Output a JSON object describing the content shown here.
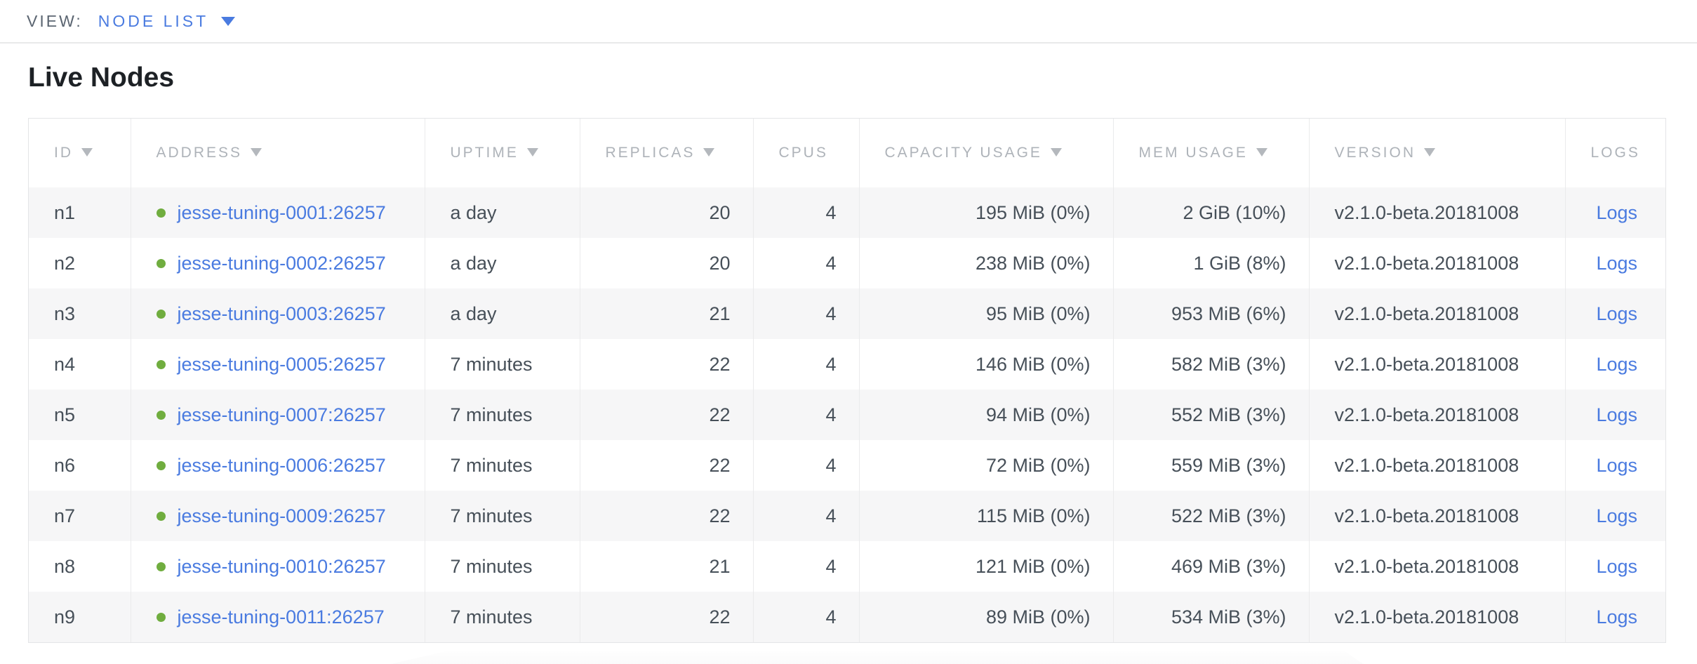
{
  "view_bar": {
    "label": "VIEW:",
    "selected": "NODE LIST"
  },
  "page": {
    "title": "Live Nodes"
  },
  "table": {
    "columns": [
      {
        "key": "id",
        "label": "ID",
        "sortable": true,
        "align": "left"
      },
      {
        "key": "address",
        "label": "ADDRESS",
        "sortable": true,
        "align": "left"
      },
      {
        "key": "uptime",
        "label": "UPTIME",
        "sortable": true,
        "align": "left"
      },
      {
        "key": "replicas",
        "label": "REPLICAS",
        "sortable": true,
        "align": "right"
      },
      {
        "key": "cpus",
        "label": "CPUS",
        "sortable": false,
        "align": "right"
      },
      {
        "key": "capacity",
        "label": "CAPACITY USAGE",
        "sortable": true,
        "align": "right"
      },
      {
        "key": "mem",
        "label": "MEM USAGE",
        "sortable": true,
        "align": "right"
      },
      {
        "key": "version",
        "label": "VERSION",
        "sortable": true,
        "align": "left"
      },
      {
        "key": "logs",
        "label": "LOGS",
        "sortable": false,
        "align": "center"
      }
    ],
    "rows": [
      {
        "id": "n1",
        "address": "jesse-tuning-0001:26257",
        "status": "live",
        "uptime": "a day",
        "replicas": "20",
        "cpus": "4",
        "capacity": "195 MiB (0%)",
        "mem": "2 GiB (10%)",
        "version": "v2.1.0-beta.20181008",
        "logs": "Logs"
      },
      {
        "id": "n2",
        "address": "jesse-tuning-0002:26257",
        "status": "live",
        "uptime": "a day",
        "replicas": "20",
        "cpus": "4",
        "capacity": "238 MiB (0%)",
        "mem": "1 GiB (8%)",
        "version": "v2.1.0-beta.20181008",
        "logs": "Logs"
      },
      {
        "id": "n3",
        "address": "jesse-tuning-0003:26257",
        "status": "live",
        "uptime": "a day",
        "replicas": "21",
        "cpus": "4",
        "capacity": "95 MiB (0%)",
        "mem": "953 MiB (6%)",
        "version": "v2.1.0-beta.20181008",
        "logs": "Logs"
      },
      {
        "id": "n4",
        "address": "jesse-tuning-0005:26257",
        "status": "live",
        "uptime": "7 minutes",
        "replicas": "22",
        "cpus": "4",
        "capacity": "146 MiB (0%)",
        "mem": "582 MiB (3%)",
        "version": "v2.1.0-beta.20181008",
        "logs": "Logs"
      },
      {
        "id": "n5",
        "address": "jesse-tuning-0007:26257",
        "status": "live",
        "uptime": "7 minutes",
        "replicas": "22",
        "cpus": "4",
        "capacity": "94 MiB (0%)",
        "mem": "552 MiB (3%)",
        "version": "v2.1.0-beta.20181008",
        "logs": "Logs"
      },
      {
        "id": "n6",
        "address": "jesse-tuning-0006:26257",
        "status": "live",
        "uptime": "7 minutes",
        "replicas": "22",
        "cpus": "4",
        "capacity": "72 MiB (0%)",
        "mem": "559 MiB (3%)",
        "version": "v2.1.0-beta.20181008",
        "logs": "Logs"
      },
      {
        "id": "n7",
        "address": "jesse-tuning-0009:26257",
        "status": "live",
        "uptime": "7 minutes",
        "replicas": "22",
        "cpus": "4",
        "capacity": "115 MiB (0%)",
        "mem": "522 MiB (3%)",
        "version": "v2.1.0-beta.20181008",
        "logs": "Logs"
      },
      {
        "id": "n8",
        "address": "jesse-tuning-0010:26257",
        "status": "live",
        "uptime": "7 minutes",
        "replicas": "21",
        "cpus": "4",
        "capacity": "121 MiB (0%)",
        "mem": "469 MiB (3%)",
        "version": "v2.1.0-beta.20181008",
        "logs": "Logs"
      },
      {
        "id": "n9",
        "address": "jesse-tuning-0011:26257",
        "status": "live",
        "uptime": "7 minutes",
        "replicas": "22",
        "cpus": "4",
        "capacity": "89 MiB (0%)",
        "mem": "534 MiB (3%)",
        "version": "v2.1.0-beta.20181008",
        "logs": "Logs"
      }
    ]
  },
  "colors": {
    "accent_blue": "#4a7be0",
    "live_green": "#70ad3f",
    "header_gray": "#aeb3b9",
    "body_text": "#475059"
  }
}
